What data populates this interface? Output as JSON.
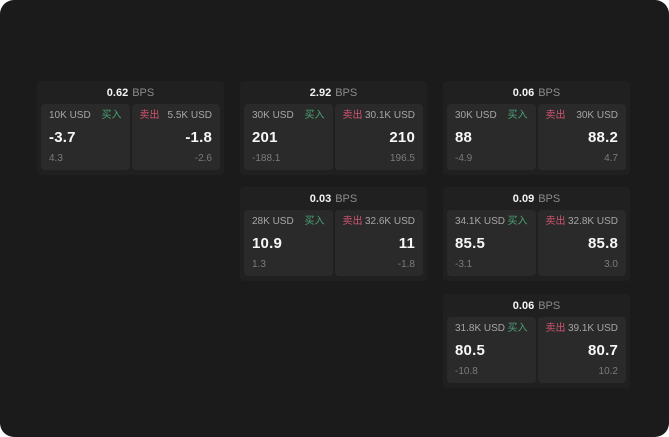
{
  "labels": {
    "buy": "买入",
    "sell": "卖出",
    "bps_unit": "BPS"
  },
  "colors": {
    "screen_background": "#1b1b1b",
    "card_background": "#202020",
    "panel_background": "#2a2a2a",
    "buy_green": "#4ba376",
    "sell_red": "#d15570",
    "primary_text": "#f5f5f5",
    "muted_text": "#8c8c8c"
  },
  "cards": [
    {
      "bps": "0.62",
      "buy": {
        "amount": "10K USD",
        "price": "-3.7",
        "delta": "4.3"
      },
      "sell": {
        "amount": "5.5K USD",
        "price": "-1.8",
        "delta": "-2.6"
      }
    },
    {
      "bps": "2.92",
      "buy": {
        "amount": "30K USD",
        "price": "201",
        "delta": "-188.1"
      },
      "sell": {
        "amount": "30.1K USD",
        "price": "210",
        "delta": "196.5"
      }
    },
    {
      "bps": "0.06",
      "buy": {
        "amount": "30K USD",
        "price": "88",
        "delta": "-4.9"
      },
      "sell": {
        "amount": "30K USD",
        "price": "88.2",
        "delta": "4.7"
      }
    },
    {
      "bps": "0.03",
      "buy": {
        "amount": "28K USD",
        "price": "10.9",
        "delta": "1.3"
      },
      "sell": {
        "amount": "32.6K USD",
        "price": "11",
        "delta": "-1.8"
      }
    },
    {
      "bps": "0.09",
      "buy": {
        "amount": "34.1K USD",
        "price": "85.5",
        "delta": "-3.1"
      },
      "sell": {
        "amount": "32.8K USD",
        "price": "85.8",
        "delta": "3.0"
      }
    },
    {
      "bps": "0.06",
      "buy": {
        "amount": "31.8K USD",
        "price": "80.5",
        "delta": "-10.8"
      },
      "sell": {
        "amount": "39.1K USD",
        "price": "80.7",
        "delta": "10.2"
      }
    }
  ]
}
